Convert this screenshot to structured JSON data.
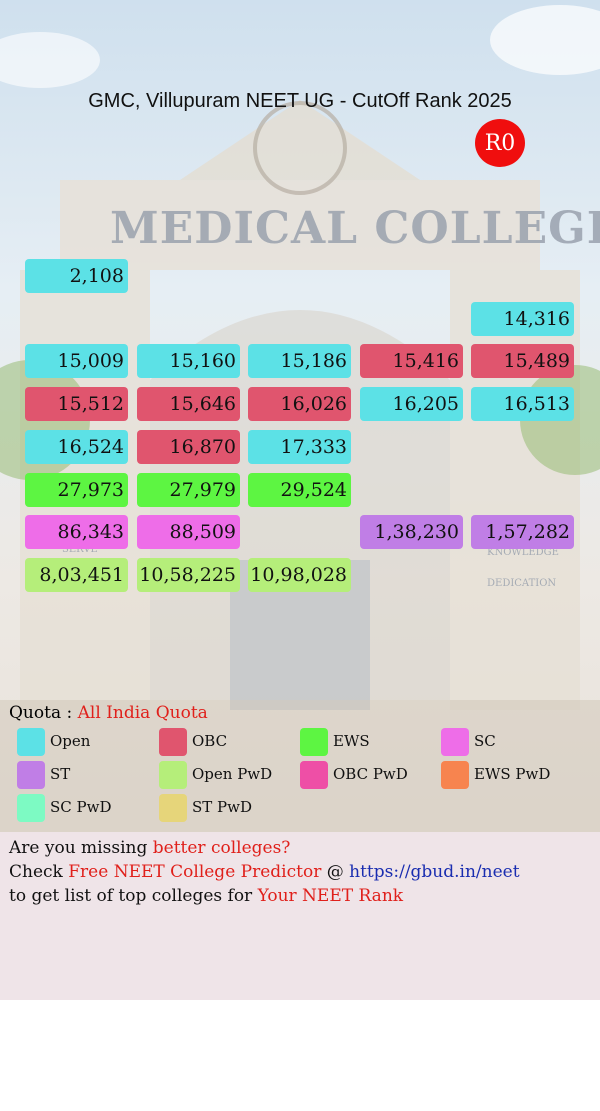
{
  "header": {
    "title": "GMC, Villupuram NEET UG - CutOff Rank 2025",
    "round": "R0"
  },
  "background_text": [
    "MEDICAL COLLEGE",
    "KNOWLEDGE",
    "DEDICATION",
    "SERVE"
  ],
  "grid": {
    "rows": [
      [
        {
          "text": "2,108",
          "color": "#5ce1e6"
        },
        null,
        null,
        null,
        null
      ],
      [
        null,
        null,
        null,
        null,
        {
          "text": "14,316",
          "color": "#5ce1e6"
        }
      ],
      [
        {
          "text": "15,009",
          "color": "#5ce1e6"
        },
        {
          "text": "15,160",
          "color": "#5ce1e6"
        },
        {
          "text": "15,186",
          "color": "#5ce1e6"
        },
        {
          "text": "15,416",
          "color": "#e0556e"
        },
        {
          "text": "15,489",
          "color": "#e0556e"
        }
      ],
      [
        {
          "text": "15,512",
          "color": "#e0556e"
        },
        {
          "text": "15,646",
          "color": "#e0556e"
        },
        {
          "text": "16,026",
          "color": "#e0556e"
        },
        {
          "text": "16,205",
          "color": "#5ce1e6"
        },
        {
          "text": "16,513",
          "color": "#5ce1e6"
        }
      ],
      [
        {
          "text": "16,524",
          "color": "#5ce1e6"
        },
        {
          "text": "16,870",
          "color": "#e0556e"
        },
        {
          "text": "17,333",
          "color": "#5ce1e6"
        },
        null,
        null
      ],
      [
        {
          "text": "27,973",
          "color": "#5df542"
        },
        {
          "text": "27,979",
          "color": "#5df542"
        },
        {
          "text": "29,524",
          "color": "#5df542"
        },
        null,
        null
      ],
      [
        {
          "text": "86,343",
          "color": "#ee6de8"
        },
        {
          "text": "88,509",
          "color": "#ee6de8"
        },
        null,
        {
          "text": "1,38,230",
          "color": "#c07ee6"
        },
        {
          "text": "1,57,282",
          "color": "#c07ee6"
        }
      ],
      [
        {
          "text": "8,03,451",
          "color": "#b5ee7a"
        },
        {
          "text": "10,58,225",
          "color": "#b5ee7a"
        },
        {
          "text": "10,98,028",
          "color": "#b5ee7a"
        },
        null,
        null
      ]
    ]
  },
  "quota": {
    "label": "Quota :",
    "value": "All India Quota"
  },
  "legend": [
    {
      "name": "Open",
      "color": "#5ce1e6"
    },
    {
      "name": "OBC",
      "color": "#e0556e"
    },
    {
      "name": "EWS",
      "color": "#5df542"
    },
    {
      "name": "SC",
      "color": "#ee6de8"
    },
    {
      "name": "ST",
      "color": "#c07ee6"
    },
    {
      "name": "Open PwD",
      "color": "#b5ee7a"
    },
    {
      "name": "OBC PwD",
      "color": "#ee4fa6"
    },
    {
      "name": "EWS PwD",
      "color": "#f7844f"
    },
    {
      "name": "SC PwD",
      "color": "#7dfac3"
    },
    {
      "name": "ST PwD",
      "color": "#e6d57a"
    }
  ],
  "footer": {
    "lines": [
      [
        {
          "text": "Are you missing "
        },
        {
          "text": "better colleges?",
          "color": "#e0201b"
        }
      ],
      [
        {
          "text": "Check "
        },
        {
          "text": "Free NEET College Predictor",
          "color": "#e0201b"
        },
        {
          "text": " @ "
        },
        {
          "text": "https://gbud.in/neet",
          "color": "#1a2db0"
        }
      ],
      [
        {
          "text": "to get list of top colleges for "
        },
        {
          "text": "Your NEET Rank",
          "color": "#e0201b"
        }
      ]
    ]
  }
}
